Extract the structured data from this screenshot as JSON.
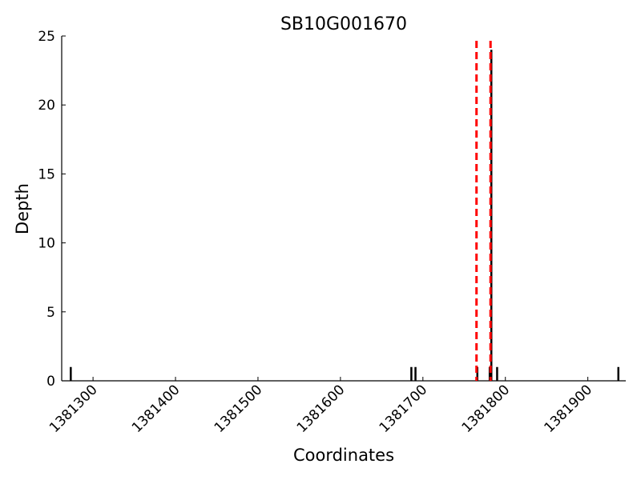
{
  "chart_data": {
    "type": "stem",
    "title": "SB10G001670",
    "x_label": "Coordinates",
    "y_label": "Depth",
    "x": [
      1381273,
      1381686,
      1381691,
      1381766,
      1381781,
      1381783,
      1381790,
      1381937
    ],
    "values": [
      1,
      1,
      1,
      1,
      1,
      24,
      1,
      1
    ],
    "color": "#000000",
    "vlines": [
      {
        "x": 1381765,
        "color": "#ff0000"
      },
      {
        "x": 1381782,
        "color": "#ff0000"
      }
    ],
    "xlim": [
      1381262,
      1381946
    ],
    "ylim": [
      0,
      25
    ],
    "xticks": [
      1381300,
      1381400,
      1381500,
      1381600,
      1381700,
      1381800,
      1381900
    ],
    "yticks": [
      0,
      5,
      10,
      15,
      20,
      25
    ]
  }
}
